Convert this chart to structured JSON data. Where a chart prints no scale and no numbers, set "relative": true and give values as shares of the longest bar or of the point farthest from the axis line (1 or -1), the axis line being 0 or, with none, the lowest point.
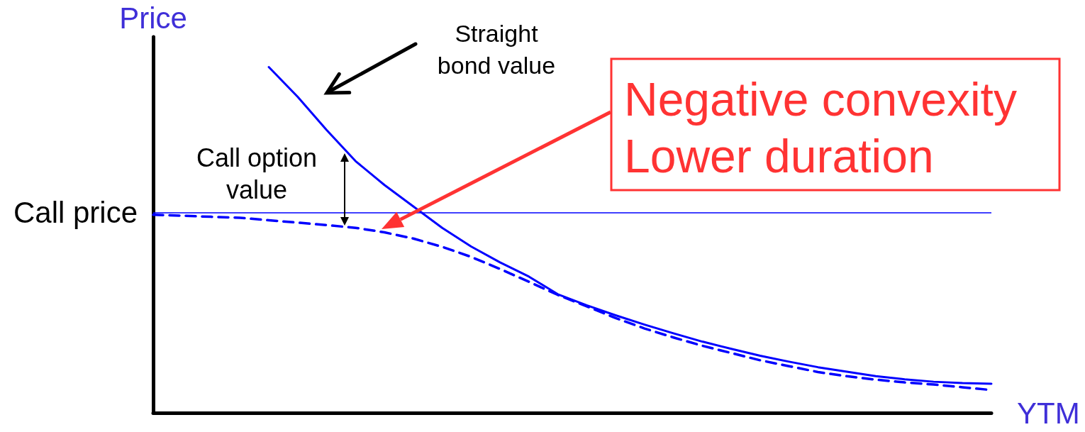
{
  "chart_data": {
    "type": "line",
    "xlabel": "YTM",
    "ylabel": "Price",
    "relative": true,
    "legend": false,
    "grid": false,
    "marker": "none",
    "categories": [
      null,
      null,
      null,
      null,
      null,
      null,
      null,
      null,
      null,
      null,
      null,
      null,
      null,
      null,
      null,
      null,
      null,
      null,
      null,
      null,
      null,
      null,
      null,
      null,
      null,
      null,
      null,
      null,
      null,
      null
    ],
    "series": [
      {
        "name": "Straight bond value",
        "color": "#0000ff",
        "line_style": "solid",
        "values": [
          null,
          null,
          null,
          null,
          1,
          0.914,
          0.818,
          0.728,
          0.659,
          0.597,
          0.535,
          0.481,
          0.435,
          0.394,
          0.343,
          0.311,
          0.282,
          0.255,
          0.23,
          0.206,
          0.185,
          0.165,
          0.148,
          0.132,
          0.119,
          0.106,
          0.097,
          0.09,
          0.086,
          0.084
        ]
      },
      {
        "color": "#0000ff",
        "line_style": "dashed",
        "values": [
          0.573,
          0.57,
          0.567,
          0.564,
          0.557,
          0.55,
          0.543,
          0.535,
          0.522,
          0.504,
          0.48,
          0.451,
          0.416,
          0.379,
          0.341,
          0.308,
          0.274,
          0.244,
          0.218,
          0.194,
          0.173,
          0.152,
          0.135,
          0.118,
          0.106,
          0.096,
          0.088,
          0.082,
          0.074,
          0.066
        ]
      }
    ],
    "ref_lines": [
      {
        "axis": "y",
        "value": 0.576,
        "label": "Call price",
        "color": "#0000ff"
      }
    ],
    "annotations": [
      "Call option value",
      "Negative convexity\nLower duration"
    ]
  }
}
